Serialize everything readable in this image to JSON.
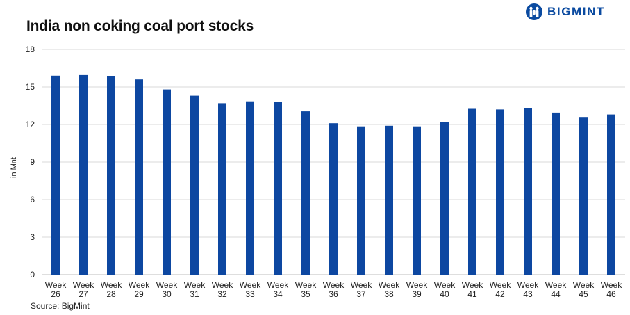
{
  "header": {
    "title": "India non coking coal port stocks",
    "logo_text": "BIGMINT",
    "brand_color": "#0a4aa0"
  },
  "footer": {
    "source": "Source: BigMint"
  },
  "chart_data": {
    "type": "bar",
    "title": "India non coking coal port stocks",
    "xlabel": "",
    "ylabel": "in Mnt",
    "ylim": [
      0,
      18
    ],
    "yticks": [
      0,
      3,
      6,
      9,
      12,
      15,
      18
    ],
    "grid": true,
    "bar_color": "#0d47a1",
    "categories": [
      [
        "Week",
        "26"
      ],
      [
        "Week",
        "27"
      ],
      [
        "Week",
        "28"
      ],
      [
        "Week",
        "29"
      ],
      [
        "Week",
        "30"
      ],
      [
        "Week",
        "31"
      ],
      [
        "Week",
        "32"
      ],
      [
        "Week",
        "33"
      ],
      [
        "Week",
        "34"
      ],
      [
        "Week",
        "35"
      ],
      [
        "Week",
        "36"
      ],
      [
        "Week",
        "37"
      ],
      [
        "Week",
        "38"
      ],
      [
        "Week",
        "39"
      ],
      [
        "Week",
        "40"
      ],
      [
        "Week",
        "41"
      ],
      [
        "Week",
        "42"
      ],
      [
        "Week",
        "43"
      ],
      [
        "Week",
        "44"
      ],
      [
        "Week",
        "45"
      ],
      [
        "Week",
        "46"
      ]
    ],
    "values": [
      15.9,
      15.95,
      15.85,
      15.6,
      14.8,
      14.3,
      13.7,
      13.85,
      13.8,
      13.05,
      12.1,
      11.85,
      11.9,
      11.85,
      12.2,
      13.25,
      13.2,
      13.3,
      12.95,
      12.6,
      12.8
    ]
  }
}
